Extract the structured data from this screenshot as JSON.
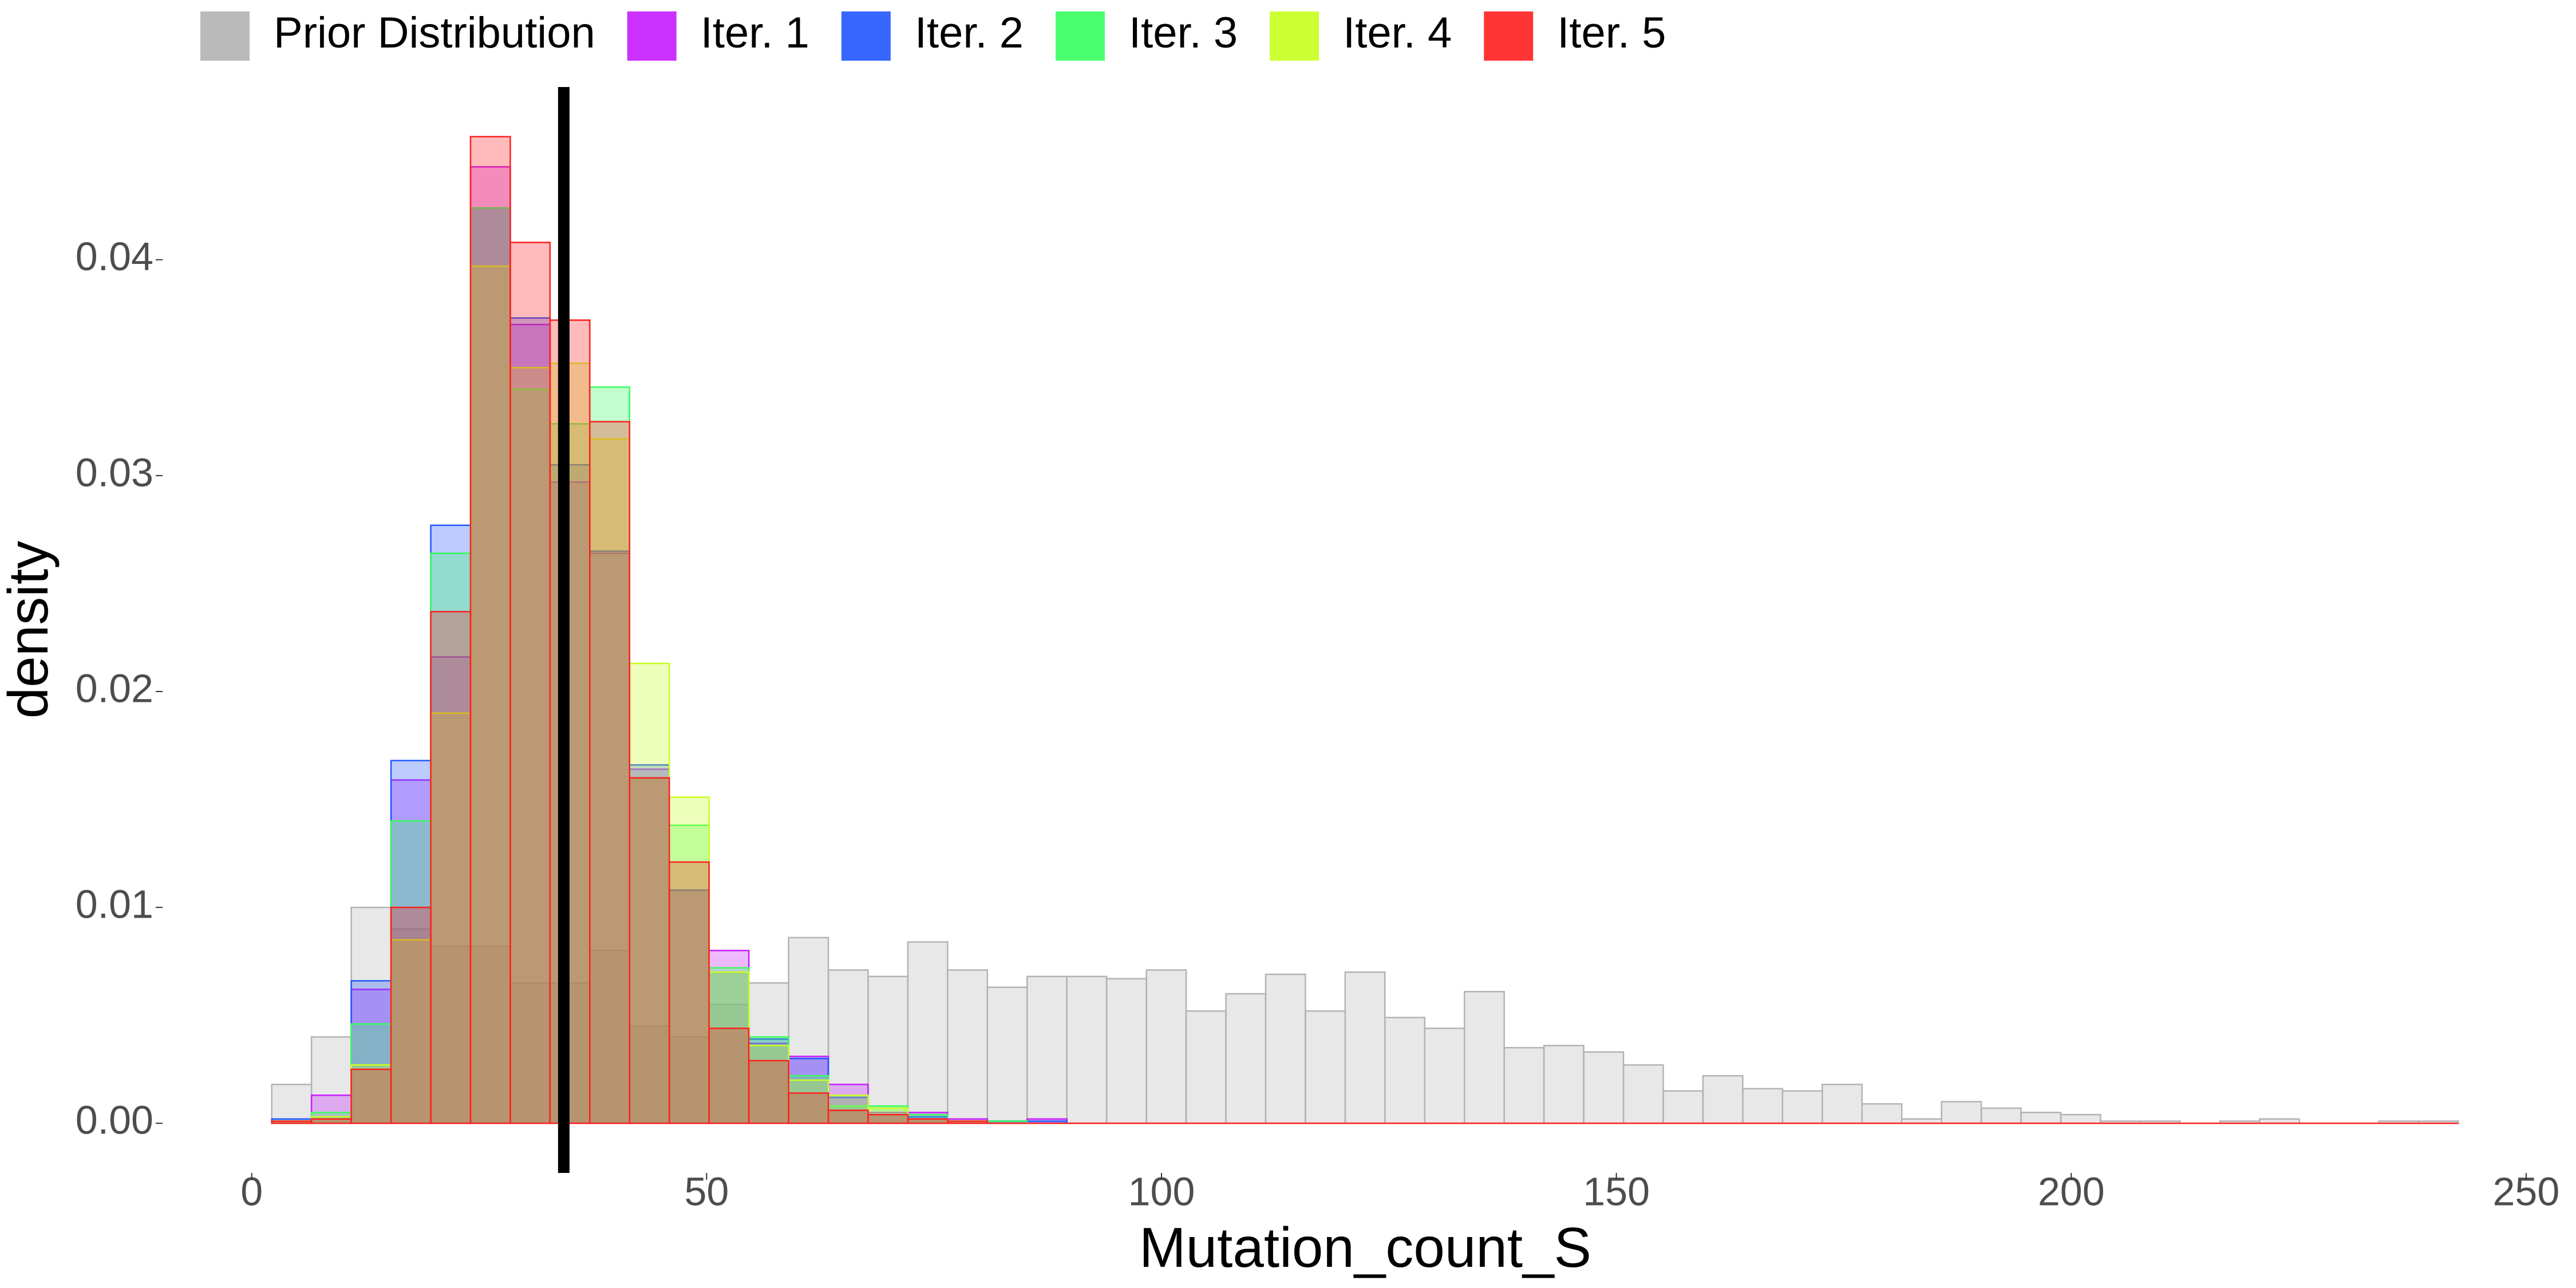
{
  "chart_data": {
    "type": "histogram",
    "x_label": "Mutation_count_S",
    "y_label": "density",
    "bins": [
      2.2,
      6.57,
      10.94,
      15.31,
      19.68,
      24.05,
      28.42,
      32.79,
      37.16,
      41.53,
      45.9,
      50.27,
      54.64,
      59.01,
      63.38,
      67.75,
      72.12,
      76.49,
      80.86,
      85.23,
      89.6,
      93.97,
      98.34,
      102.71,
      107.08,
      111.45,
      115.82,
      120.19,
      124.56,
      128.93,
      133.3,
      137.67,
      142.04,
      146.41,
      150.78,
      155.15,
      159.52,
      163.89,
      168.26,
      172.63,
      177.0,
      181.37,
      185.74,
      190.11,
      194.48,
      198.85,
      203.22,
      207.59,
      211.96,
      216.33,
      220.7,
      225.07,
      229.44,
      233.81,
      238.18,
      242.55
    ],
    "series": [
      {
        "name": "Prior Distribution",
        "color": "#b3b3b3",
        "values": [
          0.0018,
          0.004,
          0.01,
          0.009,
          0.0082,
          0.0082,
          0.0065,
          0.0065,
          0.008,
          0.0045,
          0.004,
          0.0055,
          0.0065,
          0.0086,
          0.0071,
          0.0068,
          0.0084,
          0.0071,
          0.0063,
          0.0068,
          0.0068,
          0.0067,
          0.0071,
          0.0052,
          0.006,
          0.0069,
          0.0052,
          0.007,
          0.0049,
          0.0044,
          0.0061,
          0.0035,
          0.0036,
          0.0033,
          0.0027,
          0.0015,
          0.0022,
          0.0016,
          0.0015,
          0.0018,
          0.0009,
          0.0002,
          0.001,
          0.0007,
          0.0005,
          0.0004,
          0.0001,
          0.0001,
          0,
          0.0001,
          0.0002,
          0,
          0,
          0.0001,
          0.0001
        ]
      },
      {
        "name": "Iter. 1",
        "color": "#c71cff",
        "values": [
          0.0001,
          0.0013,
          0.0062,
          0.0159,
          0.0216,
          0.0443,
          0.037,
          0.0297,
          0.0264,
          0.0164,
          0.0108,
          0.008,
          0.0037,
          0.0031,
          0.0018,
          0.0005,
          0.0005,
          0.0002,
          0.0001,
          0.0002,
          0,
          0,
          0,
          0,
          0,
          0,
          0,
          0,
          0,
          0,
          0,
          0,
          0,
          0,
          0,
          0,
          0,
          0,
          0,
          0,
          0,
          0,
          0,
          0,
          0,
          0,
          0,
          0,
          0,
          0,
          0,
          0,
          0,
          0,
          0
        ]
      },
      {
        "name": "Iter. 2",
        "color": "#2157ff",
        "values": [
          0.0002,
          0.0003,
          0.0066,
          0.0168,
          0.0277,
          0.0424,
          0.0373,
          0.0305,
          0.0265,
          0.0166,
          0.0108,
          0.007,
          0.0039,
          0.003,
          0.0012,
          0.0004,
          0.0003,
          0.0001,
          0.0001,
          0.0001,
          0,
          0,
          0,
          0,
          0,
          0,
          0,
          0,
          0,
          0,
          0,
          0,
          0,
          0,
          0,
          0,
          0,
          0,
          0,
          0,
          0,
          0,
          0,
          0,
          0,
          0,
          0,
          0,
          0,
          0,
          0,
          0,
          0,
          0,
          0
        ]
      },
      {
        "name": "Iter. 3",
        "color": "#36ff5e",
        "values": [
          0.0001,
          0.0005,
          0.0046,
          0.014,
          0.0264,
          0.0424,
          0.034,
          0.0324,
          0.0341,
          0.016,
          0.0138,
          0.0072,
          0.004,
          0.0022,
          0.0008,
          0.0008,
          0.0004,
          0.0001,
          0.0001,
          0,
          0,
          0,
          0,
          0,
          0,
          0,
          0,
          0,
          0,
          0,
          0,
          0,
          0,
          0,
          0,
          0,
          0,
          0,
          0,
          0,
          0,
          0,
          0,
          0,
          0,
          0,
          0,
          0,
          0,
          0,
          0,
          0,
          0,
          0,
          0
        ]
      },
      {
        "name": "Iter. 4",
        "color": "#c8ff1f",
        "values": [
          0.0001,
          0.0003,
          0.0027,
          0.0085,
          0.019,
          0.0397,
          0.035,
          0.0352,
          0.0317,
          0.0213,
          0.0151,
          0.007,
          0.0036,
          0.002,
          0.0013,
          0.0007,
          0.0002,
          0.0001,
          0,
          0,
          0,
          0,
          0,
          0,
          0,
          0,
          0,
          0,
          0,
          0,
          0,
          0,
          0,
          0,
          0,
          0,
          0,
          0,
          0,
          0,
          0,
          0,
          0,
          0,
          0,
          0,
          0,
          0,
          0,
          0,
          0,
          0,
          0,
          0,
          0
        ]
      },
      {
        "name": "Iter. 5",
        "color": "#ff1f1f",
        "values": [
          0.0001,
          0.0002,
          0.0025,
          0.01,
          0.0237,
          0.0457,
          0.0408,
          0.0372,
          0.0325,
          0.016,
          0.0121,
          0.0044,
          0.0029,
          0.0014,
          0.0006,
          0.0004,
          0.0002,
          0.0001,
          0,
          0,
          0,
          0,
          0,
          0,
          0,
          0,
          0,
          0,
          0,
          0,
          0,
          0,
          0,
          0,
          0,
          0,
          0,
          0,
          0,
          0,
          0,
          0,
          0,
          0,
          0,
          0,
          0,
          0,
          0,
          0,
          0,
          0,
          0,
          0,
          0
        ]
      }
    ],
    "vline": {
      "x": 34.3,
      "color": "#000000"
    },
    "xlim": [
      -9.8,
      254.6
    ],
    "ylim": [
      -0.0023,
      0.048
    ],
    "xticks": [
      0,
      50,
      100,
      150,
      200,
      250
    ],
    "yticks": [
      {
        "value": 0,
        "label": "0.00"
      },
      0.01,
      0.02,
      0.03,
      0.04
    ],
    "grid": false,
    "legend_position": "top"
  }
}
